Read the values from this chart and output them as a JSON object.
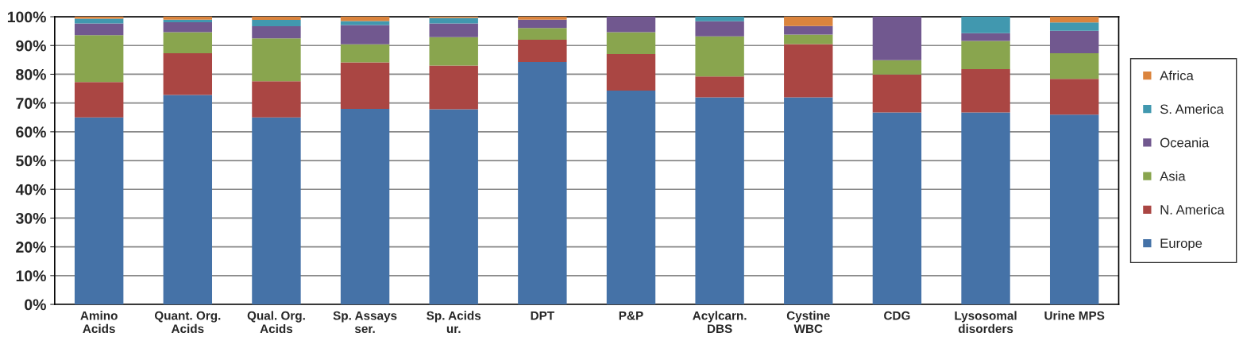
{
  "chart_data": {
    "type": "bar",
    "stacked": true,
    "categories": [
      "Amino\nAcids",
      "Quant. Org.\nAcids",
      "Qual. Org.\nAcids",
      "Sp. Assays\nser.",
      "Sp. Acids\nur.",
      "DPT",
      "P&P",
      "Acylcarn.\nDBS",
      "Cystine\nWBC",
      "CDG",
      "Lysosomal\ndisorders",
      "Urine MPS"
    ],
    "series": [
      {
        "name": "Europe",
        "color": "#4572a7",
        "values": [
          65,
          72.8,
          65,
          68,
          67.8,
          84.3,
          74.3,
          72,
          72,
          66.7,
          66.7,
          66
        ]
      },
      {
        "name": "N. America",
        "color": "#aa4643",
        "values": [
          12.3,
          14.5,
          12.6,
          16.1,
          15.2,
          7.7,
          12.7,
          7.2,
          18.5,
          13.2,
          15.1,
          12.4
        ]
      },
      {
        "name": "Asia",
        "color": "#89a54e",
        "values": [
          16.3,
          7.3,
          14.9,
          6.3,
          9.9,
          4.1,
          7.6,
          14,
          3.3,
          5,
          9.8,
          8.9
        ]
      },
      {
        "name": "Oceania",
        "color": "#71588f",
        "values": [
          4.1,
          3.5,
          4.2,
          6.7,
          4.8,
          2.9,
          5.4,
          5.2,
          3,
          15.1,
          2.7,
          7.8
        ]
      },
      {
        "name": "S. America",
        "color": "#4198af",
        "values": [
          1.6,
          0.9,
          2.2,
          1.4,
          1.9,
          null,
          null,
          1.6,
          null,
          null,
          5.7,
          2.9
        ]
      },
      {
        "name": "Africa",
        "color": "#db843d",
        "values": [
          0.7,
          1,
          1.1,
          1.5,
          0.4,
          1,
          null,
          null,
          3.2,
          null,
          null,
          2
        ]
      }
    ],
    "ylim": [
      0,
      100
    ],
    "yticks": [
      {
        "value": 0,
        "label": "0%"
      },
      {
        "value": 10,
        "label": "10%"
      },
      {
        "value": 20,
        "label": "20%"
      },
      {
        "value": 30,
        "label": "30%"
      },
      {
        "value": 40,
        "label": "40%"
      },
      {
        "value": 50,
        "label": "50%"
      },
      {
        "value": 60,
        "label": "60%"
      },
      {
        "value": 70,
        "label": "70%"
      },
      {
        "value": 80,
        "label": "80%"
      },
      {
        "value": 90,
        "label": "90%"
      },
      {
        "value": 100,
        "label": "100%"
      }
    ],
    "grid": "y",
    "legend": "right"
  }
}
